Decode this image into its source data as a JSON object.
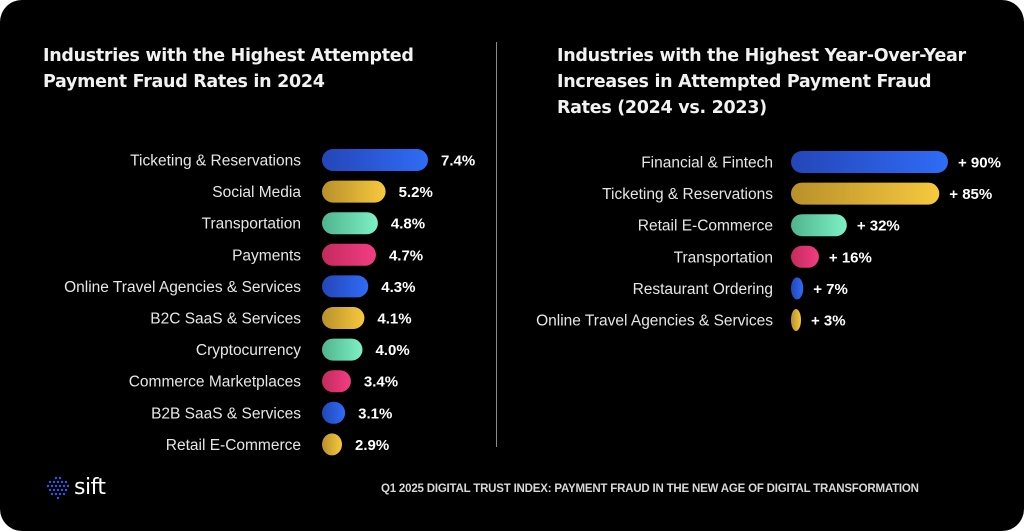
{
  "chart_data": [
    {
      "type": "bar",
      "orientation": "horizontal",
      "title": "Industries with the Highest Attempted Payment Fraud Rates in 2024",
      "categories": [
        "Ticketing & Reservations",
        "Social Media",
        "Transportation",
        "Payments",
        "Online Travel Agencies & Services",
        "B2C SaaS & Services",
        "Cryptocurrency",
        "Commerce Marketplaces",
        "B2B SaaS & Services",
        "Retail E-Commerce"
      ],
      "values": [
        7.4,
        5.2,
        4.8,
        4.7,
        4.3,
        4.1,
        4.0,
        3.4,
        3.1,
        2.9
      ],
      "value_labels": [
        "7.4%",
        "5.2%",
        "4.8%",
        "4.7%",
        "4.3%",
        "4.1%",
        "4.0%",
        "3.4%",
        "3.1%",
        "2.9%"
      ],
      "unit": "%",
      "bar_colors": [
        "blue",
        "gold",
        "teal",
        "pink",
        "blue",
        "gold",
        "teal",
        "pink",
        "blue",
        "gold"
      ],
      "xlabel": "",
      "ylabel": "",
      "grid": false,
      "legend": "none"
    },
    {
      "type": "bar",
      "orientation": "horizontal",
      "title": "Industries with the Highest Year-Over-Year Increases in Attempted Payment Fraud Rates (2024 vs. 2023)",
      "categories": [
        "Financial & Fintech",
        "Ticketing & Reservations",
        "Retail E-Commerce",
        "Transportation",
        "Restaurant Ordering",
        "Online Travel Agencies & Services"
      ],
      "values": [
        90,
        85,
        32,
        16,
        7,
        3
      ],
      "value_labels": [
        "+ 90%",
        "+ 85%",
        "+ 32%",
        "+ 16%",
        "+ 7%",
        "+ 3%"
      ],
      "unit": "%",
      "bar_colors": [
        "blue",
        "gold",
        "teal",
        "pink",
        "blue",
        "gold"
      ],
      "xlabel": "",
      "ylabel": "",
      "grid": false,
      "legend": "none"
    }
  ],
  "titles": {
    "left": "Industries with the Highest Attempted Payment Fraud Rates in 2024",
    "right": "Industries with the Highest Year-Over-Year Increases in Attempted Payment Fraud Rates (2024 vs. 2023)"
  },
  "palette": {
    "blue": [
      "#2446b8",
      "#2f6cf6"
    ],
    "gold": [
      "#b8902a",
      "#f7c93e"
    ],
    "teal": [
      "#4fb48e",
      "#7ef0c6"
    ],
    "pink": [
      "#c42a5e",
      "#f23d83"
    ]
  },
  "footer": {
    "logo_text": "sift",
    "logo_icon": "dot-grid-icon",
    "caption": "Q1 2025 DIGITAL TRUST INDEX: PAYMENT FRAUD IN THE NEW AGE OF DIGITAL TRANSFORMATION"
  }
}
